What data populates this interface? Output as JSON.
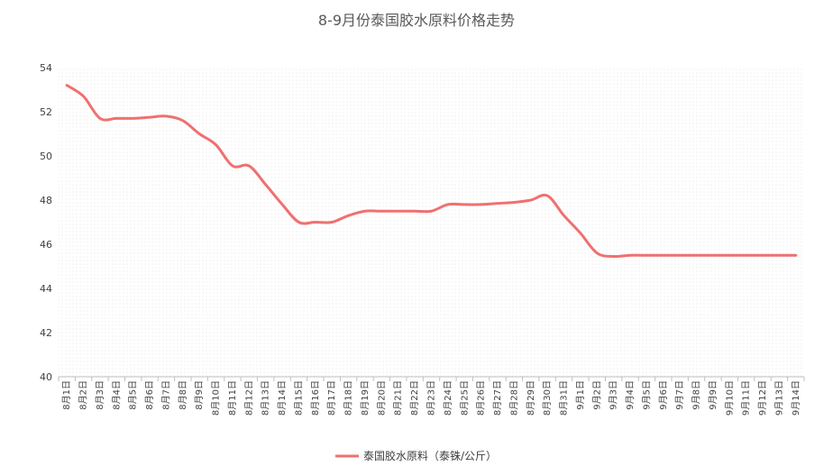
{
  "chart_data": {
    "type": "line",
    "title": "8-9月份泰国胶水原料价格走势",
    "xlabel": "",
    "ylabel": "",
    "ylim": [
      40,
      54
    ],
    "yticks": [
      40,
      42,
      44,
      46,
      48,
      50,
      52,
      54
    ],
    "grid": false,
    "legend_position": "bottom",
    "line_color": "#f07070",
    "categories": [
      "8月1日",
      "8月2日",
      "8月3日",
      "8月4日",
      "8月5日",
      "8月6日",
      "8月7日",
      "8月8日",
      "8月9日",
      "8月10日",
      "8月11日",
      "8月12日",
      "8月13日",
      "8月14日",
      "8月15日",
      "8月16日",
      "8月17日",
      "8月18日",
      "8月19日",
      "8月20日",
      "8月21日",
      "8月22日",
      "8月23日",
      "8月24日",
      "8月25日",
      "8月26日",
      "8月27日",
      "8月28日",
      "8月29日",
      "8月30日",
      "8月31日",
      "9月1日",
      "9月2日",
      "9月3日",
      "9月4日",
      "9月5日",
      "9月6日",
      "9月7日",
      "9月8日",
      "9月9日",
      "9月10日",
      "9月11日",
      "9月12日",
      "9月13日",
      "9月14日"
    ],
    "series": [
      {
        "name": "泰国胶水原料（泰铢/公斤）",
        "values": [
          53.2,
          52.7,
          51.7,
          51.7,
          51.7,
          51.75,
          51.8,
          51.6,
          51.0,
          50.5,
          49.55,
          49.55,
          48.7,
          47.8,
          47.0,
          47.0,
          47.0,
          47.3,
          47.5,
          47.5,
          47.5,
          47.5,
          47.5,
          47.8,
          47.8,
          47.8,
          47.85,
          47.9,
          48.0,
          48.2,
          47.3,
          46.5,
          45.6,
          45.45,
          45.5,
          45.5,
          45.5,
          45.5,
          45.5,
          45.5,
          45.5,
          45.5,
          45.5,
          45.5,
          45.5
        ]
      }
    ]
  }
}
